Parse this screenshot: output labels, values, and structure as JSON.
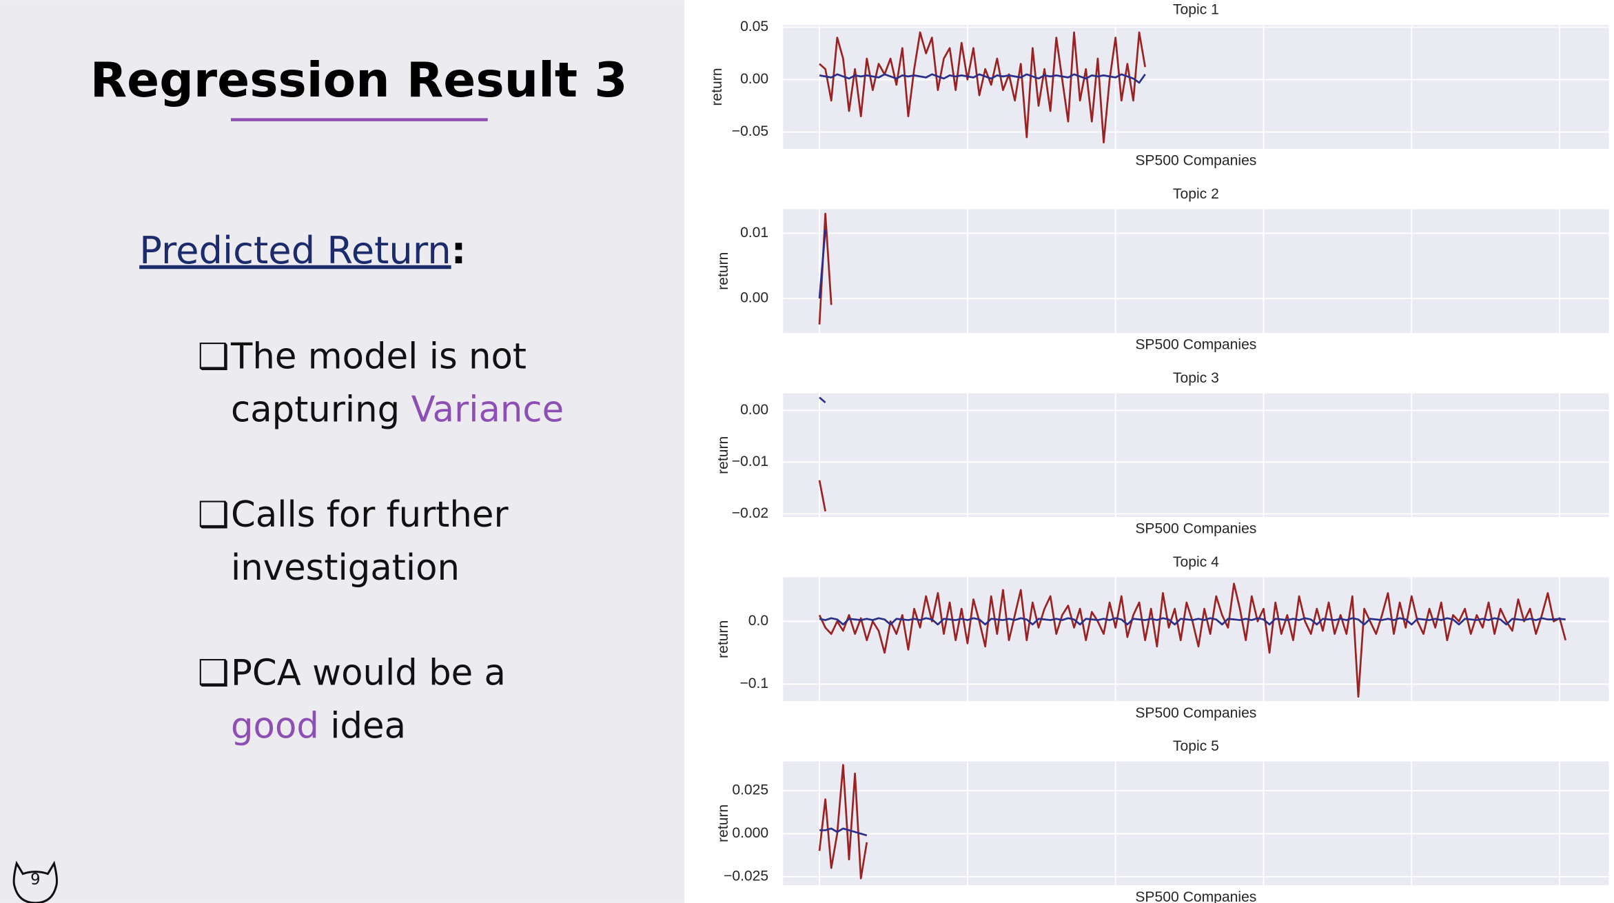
{
  "slide": {
    "title": "Regression Result 3",
    "heading": "Predicted Return",
    "heading_suffix": ":",
    "page_number": "9",
    "bullets": [
      {
        "marker": "❑",
        "lines": [
          [
            {
              "text": "The model is not"
            }
          ],
          [
            {
              "text": "capturing"
            },
            {
              "text": "Variance",
              "color": "#8e4fb5"
            }
          ]
        ]
      },
      {
        "marker": "❑",
        "lines": [
          [
            {
              "text": "Calls for further"
            }
          ],
          [
            {
              "text": "investigation"
            }
          ]
        ]
      },
      {
        "marker": "❑",
        "lines": [
          [
            {
              "text": "PCA would be a"
            }
          ],
          [
            {
              "text": "good",
              "color": "#8e4fb5"
            },
            {
              "text": "idea"
            }
          ]
        ]
      }
    ]
  },
  "chart_data": [
    {
      "type": "line",
      "title": "Topic 1",
      "xlabel": "SP500 Companies",
      "ylabel": "return",
      "plot_background": "#eaeaf2",
      "grid": true,
      "show_xtick_labels": false,
      "xlim": [
        -6.14,
        133.3
      ],
      "xticks": [
        0,
        25,
        50,
        75,
        100,
        125
      ],
      "ylim": [
        -0.066,
        0.052
      ],
      "yticks": [
        {
          "value": 0.05,
          "label": "0.05"
        },
        {
          "value": 0,
          "label": "0.00"
        },
        {
          "value": -0.05,
          "label": "−0.05"
        }
      ],
      "series": [
        {
          "color": "#992222",
          "values": [
            0.015,
            0.01,
            -0.02,
            0.04,
            0.02,
            -0.03,
            0.01,
            -0.035,
            0.02,
            -0.01,
            0.015,
            0.005,
            0.02,
            -0.005,
            0.03,
            -0.035,
            0.01,
            0.045,
            0.025,
            0.04,
            -0.01,
            0.02,
            0.03,
            -0.01,
            0.035,
            0.0,
            0.03,
            -0.015,
            0.01,
            -0.005,
            0.02,
            -0.01,
            0.005,
            -0.02,
            0.015,
            -0.055,
            0.03,
            -0.025,
            0.01,
            -0.03,
            0.04,
            0.0,
            -0.04,
            0.045,
            -0.02,
            0.01,
            -0.04,
            0.02,
            -0.06,
            0.0,
            0.04,
            -0.02,
            0.015,
            -0.02,
            0.045,
            0.012
          ]
        },
        {
          "color": "#2b2f8a",
          "values": [
            0.004,
            0.003,
            0.002,
            0.005,
            0.003,
            0.001,
            0.004,
            0.003,
            0.004,
            0.003,
            0.002,
            0.005,
            0.003,
            0.001,
            0.004,
            0.003,
            0.004,
            0.003,
            0.002,
            0.005,
            0.003,
            0.001,
            0.004,
            0.003,
            0.004,
            0.003,
            0.002,
            0.005,
            0.003,
            0.001,
            0.004,
            0.003,
            0.004,
            0.003,
            0.002,
            0.005,
            0.003,
            0.001,
            0.004,
            0.003,
            0.004,
            0.003,
            0.002,
            0.005,
            0.003,
            0.001,
            0.004,
            0.003,
            0.004,
            0.003,
            0.002,
            0.005,
            0.003,
            0.001,
            -0.003,
            0.005
          ]
        }
      ]
    },
    {
      "type": "line",
      "title": "Topic 2",
      "xlabel": "SP500 Companies",
      "ylabel": "return",
      "plot_background": "#eaeaf2",
      "grid": true,
      "show_xtick_labels": false,
      "xlim": [
        -6.14,
        133.3
      ],
      "xticks": [
        0,
        25,
        50,
        75,
        100,
        125
      ],
      "ylim": [
        -0.0053,
        0.0137
      ],
      "yticks": [
        {
          "value": 0.01,
          "label": "0.01"
        },
        {
          "value": 0,
          "label": "0.00"
        }
      ],
      "series": [
        {
          "color": "#992222",
          "values": [
            -0.004,
            0.013,
            -0.001
          ]
        },
        {
          "color": "#2b2f8a",
          "values": [
            0.0,
            0.0105
          ]
        }
      ]
    },
    {
      "type": "line",
      "title": "Topic 3",
      "xlabel": "SP500 Companies",
      "ylabel": "return",
      "plot_background": "#eaeaf2",
      "grid": true,
      "show_xtick_labels": false,
      "xlim": [
        -6.14,
        133.3
      ],
      "xticks": [
        0,
        25,
        50,
        75,
        100,
        125
      ],
      "ylim": [
        -0.0206,
        0.0033
      ],
      "yticks": [
        {
          "value": 0,
          "label": "0.00"
        },
        {
          "value": -0.01,
          "label": "−0.01"
        },
        {
          "value": -0.02,
          "label": "−0.02"
        }
      ],
      "series": [
        {
          "color": "#992222",
          "values": [
            -0.0135,
            -0.0195
          ]
        },
        {
          "color": "#2b2f8a",
          "values": [
            0.0025,
            0.0015
          ]
        }
      ]
    },
    {
      "type": "line",
      "title": "Topic 4",
      "xlabel": "SP500 Companies",
      "ylabel": "return",
      "plot_background": "#eaeaf2",
      "grid": true,
      "show_xtick_labels": false,
      "xlim": [
        -6.14,
        133.3
      ],
      "xticks": [
        0,
        25,
        50,
        75,
        100,
        125
      ],
      "ylim": [
        -0.127,
        0.07
      ],
      "yticks": [
        {
          "value": 0,
          "label": "0.0"
        },
        {
          "value": -0.1,
          "label": "−0.1"
        }
      ],
      "series": [
        {
          "color": "#992222",
          "values": [
            0.01,
            -0.01,
            -0.02,
            0.0,
            -0.015,
            0.01,
            -0.02,
            0.005,
            -0.03,
            0.0,
            -0.015,
            -0.05,
            0.0,
            -0.02,
            0.01,
            -0.045,
            0.02,
            -0.01,
            0.04,
            0.0,
            0.045,
            -0.02,
            0.03,
            -0.03,
            0.02,
            -0.035,
            0.035,
            0.0,
            -0.04,
            0.04,
            -0.02,
            0.05,
            -0.03,
            0.01,
            0.05,
            -0.03,
            0.03,
            -0.01,
            0.02,
            0.04,
            -0.02,
            0.01,
            0.025,
            -0.01,
            0.02,
            -0.03,
            0.015,
            0.0,
            -0.02,
            0.03,
            -0.01,
            0.04,
            -0.025,
            0.01,
            0.03,
            -0.03,
            0.02,
            -0.04,
            0.045,
            -0.01,
            0.02,
            -0.03,
            0.03,
            0.0,
            -0.04,
            0.02,
            -0.02,
            0.04,
            0.01,
            -0.01,
            0.06,
            0.02,
            -0.03,
            0.04,
            0.0,
            0.02,
            -0.05,
            0.03,
            -0.02,
            0.01,
            -0.03,
            0.04,
            0.0,
            -0.02,
            0.02,
            -0.015,
            0.03,
            -0.02,
            0.01,
            -0.02,
            0.04,
            -0.12,
            0.02,
            0.0,
            -0.02,
            0.01,
            0.045,
            -0.02,
            0.03,
            -0.01,
            0.04,
            0.0,
            -0.02,
            0.02,
            -0.01,
            0.03,
            -0.03,
            0.01,
            0.0,
            0.02,
            -0.02,
            0.01,
            -0.01,
            0.03,
            -0.02,
            0.02,
            0.0,
            -0.015,
            0.035,
            0.0,
            0.02,
            -0.02,
            0.01,
            0.045,
            0.0,
            0.005,
            -0.03
          ]
        },
        {
          "color": "#2b2f8a",
          "values": [
            0.004,
            0.002,
            0.005,
            0.003,
            -0.005,
            0.004,
            0.003,
            0.002,
            0.004,
            0.002,
            0.005,
            0.003,
            -0.005,
            0.004,
            0.003,
            0.002,
            0.004,
            0.002,
            0.005,
            0.003,
            -0.005,
            0.004,
            0.003,
            0.002,
            0.004,
            0.002,
            0.005,
            0.003,
            -0.005,
            0.004,
            0.003,
            0.002,
            0.004,
            0.002,
            0.005,
            0.003,
            -0.005,
            0.004,
            0.003,
            0.002,
            0.004,
            0.002,
            0.005,
            0.003,
            -0.005,
            0.004,
            0.003,
            0.002,
            0.004,
            0.002,
            0.005,
            0.003,
            -0.005,
            0.004,
            0.003,
            0.002,
            0.004,
            0.002,
            0.005,
            0.003,
            -0.005,
            0.004,
            0.003,
            0.002,
            0.004,
            0.002,
            0.005,
            0.003,
            -0.005,
            0.004,
            0.003,
            0.002,
            0.004,
            0.002,
            0.005,
            0.003,
            -0.005,
            0.004,
            0.003,
            0.002,
            0.004,
            0.002,
            0.005,
            0.003,
            -0.005,
            0.004,
            0.003,
            0.002,
            0.004,
            0.002,
            0.005,
            0.003,
            -0.005,
            0.004,
            0.003,
            0.002,
            0.004,
            0.002,
            0.005,
            0.003,
            -0.005,
            0.004,
            0.003,
            0.002,
            0.004,
            0.002,
            0.005,
            0.003,
            -0.005,
            0.004,
            0.003,
            0.002,
            0.004,
            0.002,
            0.005,
            0.003,
            -0.005,
            0.004,
            0.003,
            0.002,
            0.004,
            0.002,
            0.005,
            0.003,
            0.003,
            0.004,
            0.003
          ]
        }
      ]
    },
    {
      "type": "line",
      "title": "Topic 5",
      "xlabel": "SP500 Companies",
      "ylabel": "return",
      "plot_background": "#eaeaf2",
      "grid": true,
      "show_xtick_labels": false,
      "xlim": [
        -6.14,
        133.3
      ],
      "xticks": [
        0,
        25,
        50,
        75,
        100,
        125
      ],
      "ylim": [
        -0.03,
        0.042
      ],
      "yticks": [
        {
          "value": 0.025,
          "label": "0.025"
        },
        {
          "value": 0,
          "label": "0.000"
        },
        {
          "value": -0.025,
          "label": "−0.025"
        }
      ],
      "series": [
        {
          "color": "#992222",
          "values": [
            -0.01,
            0.02,
            -0.02,
            0.0,
            0.04,
            -0.015,
            0.035,
            -0.026,
            -0.005
          ]
        },
        {
          "color": "#2b2f8a",
          "values": [
            0.002,
            0.002,
            0.003,
            0.001,
            0.003,
            0.002,
            0.001,
            0.0,
            -0.001
          ]
        }
      ]
    }
  ]
}
